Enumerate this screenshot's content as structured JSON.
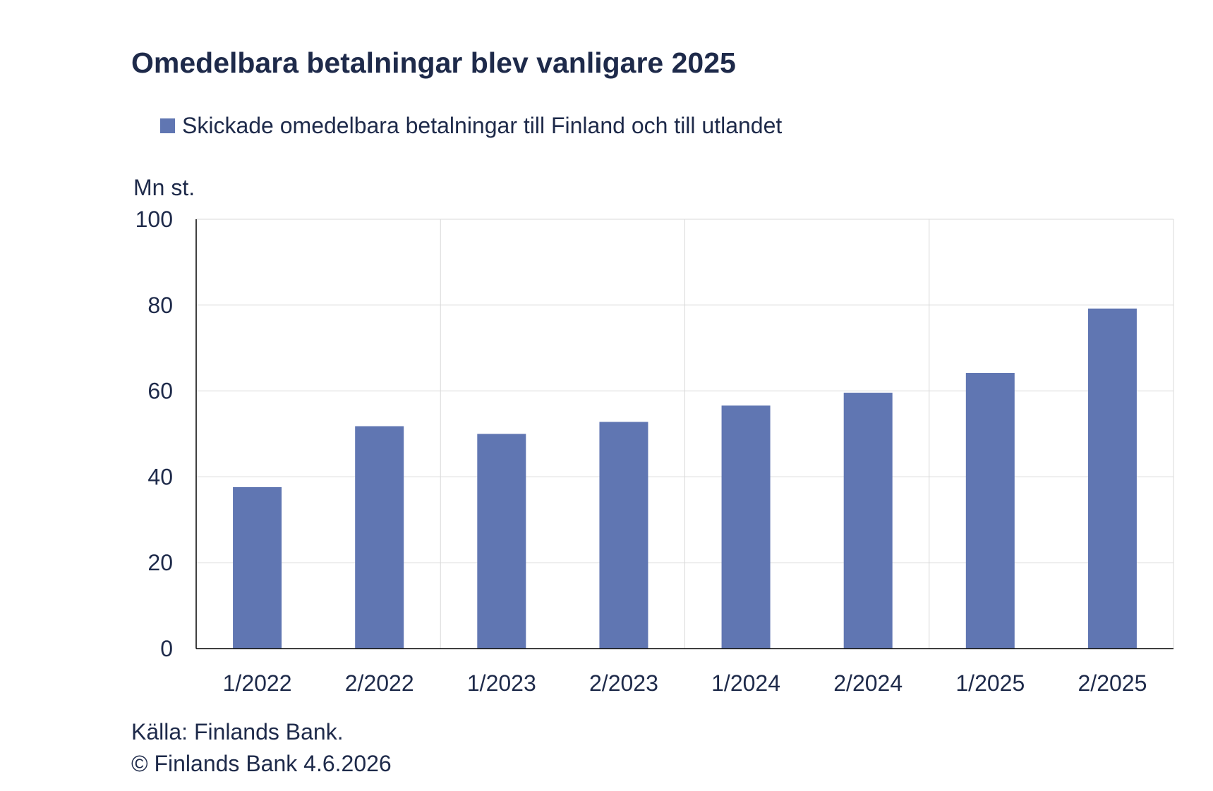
{
  "chart_data": {
    "type": "bar",
    "title": "Omedelbara betalningar blev vanligare 2025",
    "ylabel": "Mn st.",
    "xlabel": "",
    "categories": [
      "1/2022",
      "2/2022",
      "1/2023",
      "2/2023",
      "1/2024",
      "2/2024",
      "1/2025",
      "2/2025"
    ],
    "series": [
      {
        "name": "Skickade omedelbara betalningar till Finland och till utlandet",
        "values": [
          37.6,
          51.8,
          50.0,
          52.8,
          56.6,
          59.6,
          64.2,
          79.2
        ],
        "color": "#6076b2"
      }
    ],
    "ylim": [
      0,
      100
    ],
    "yticks": [
      0,
      20,
      40,
      60,
      80,
      100
    ],
    "grid": true,
    "legend_position": "top-left"
  },
  "footer": {
    "source": "Källa: Finlands Bank.",
    "copyright": "© Finlands Bank 4.6.2026"
  },
  "colors": {
    "text": "#1e2a4a",
    "bar": "#6076b2",
    "grid": "#d9d9d9",
    "axis": "#000000"
  }
}
